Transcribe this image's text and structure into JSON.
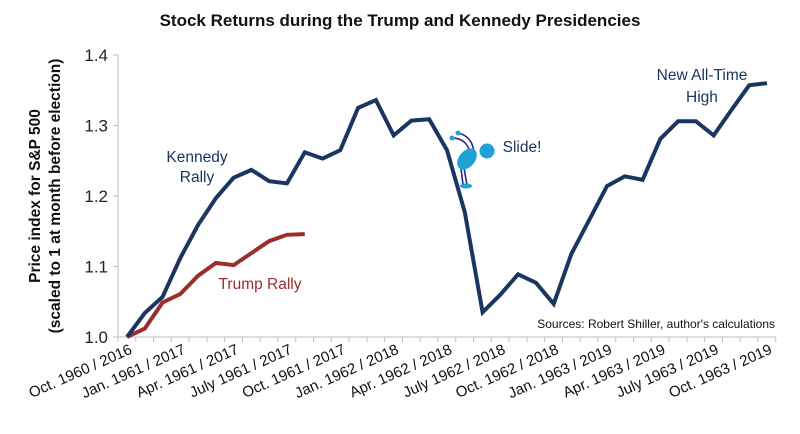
{
  "chart_data": {
    "type": "line",
    "title": "Stock Returns during the Trump and Kennedy Presidencies",
    "xlabel": "",
    "ylabel": [
      "Price index for S&P 500",
      "(scaled to 1 at month before election)"
    ],
    "ylim": [
      1.0,
      1.4
    ],
    "yticks": [
      "1.0",
      "1.1",
      "1.2",
      "1.3",
      "1.4"
    ],
    "ytick_values": [
      1.0,
      1.1,
      1.2,
      1.3,
      1.4
    ],
    "x_count": 37,
    "xtick_labels": [
      {
        "index": 0,
        "label": "Oct. 1960 / 2016"
      },
      {
        "index": 3,
        "label": "Jan. 1961 / 2017"
      },
      {
        "index": 6,
        "label": "Apr. 1961 / 2017"
      },
      {
        "index": 9,
        "label": "July 1961 / 2017"
      },
      {
        "index": 12,
        "label": "Oct. 1961 / 2017"
      },
      {
        "index": 15,
        "label": "Jan. 1962 / 2018"
      },
      {
        "index": 18,
        "label": "Apr. 1962 / 2018"
      },
      {
        "index": 21,
        "label": "July 1962 / 2018"
      },
      {
        "index": 24,
        "label": "Oct. 1962 / 2018"
      },
      {
        "index": 27,
        "label": "Jan. 1963 / 2019"
      },
      {
        "index": 30,
        "label": "Apr. 1963 / 2019"
      },
      {
        "index": 33,
        "label": "July 1963 / 2019"
      },
      {
        "index": 36,
        "label": "Oct. 1963 / 2019"
      }
    ],
    "grid": false,
    "legend": "none (inline annotations)",
    "series": [
      {
        "name": "Kennedy",
        "color": "#1a3560",
        "values": [
          1.0,
          1.034,
          1.057,
          1.112,
          1.159,
          1.197,
          1.226,
          1.237,
          1.221,
          1.218,
          1.262,
          1.253,
          1.265,
          1.325,
          1.336,
          1.286,
          1.307,
          1.309,
          1.265,
          1.177,
          1.035,
          1.06,
          1.089,
          1.077,
          1.047,
          1.118,
          1.166,
          1.214,
          1.228,
          1.223,
          1.281,
          1.306,
          1.306,
          1.286,
          1.322,
          1.357,
          1.36
        ]
      },
      {
        "name": "Trump",
        "color": "#9b2d2d",
        "values": [
          1.0,
          1.012,
          1.049,
          1.061,
          1.087,
          1.105,
          1.102,
          1.119,
          1.136,
          1.145,
          1.146
        ]
      }
    ],
    "annotations": [
      {
        "lines": [
          "Kennedy",
          "Rally"
        ],
        "series": "Kennedy",
        "near_index": 4
      },
      {
        "lines": [
          "Trump Rally"
        ],
        "series": "Trump",
        "near_index": 8
      },
      {
        "lines": [
          "Slide!"
        ],
        "series": "Kennedy",
        "near_index": 20
      },
      {
        "lines": [
          "New All-Time",
          "High"
        ],
        "series": "Kennedy",
        "near_index": 33
      }
    ],
    "source": "Sources: Robert Shiller, author's calculations"
  },
  "colors": {
    "kennedy": "#1a3560",
    "trump": "#9b2d2d",
    "axis": "#bfbfbf",
    "figure_body": "#1fa3d6",
    "figure_limbs": "#1f2a8a"
  },
  "icons": {
    "slide_figure": "slide-figure-icon"
  }
}
